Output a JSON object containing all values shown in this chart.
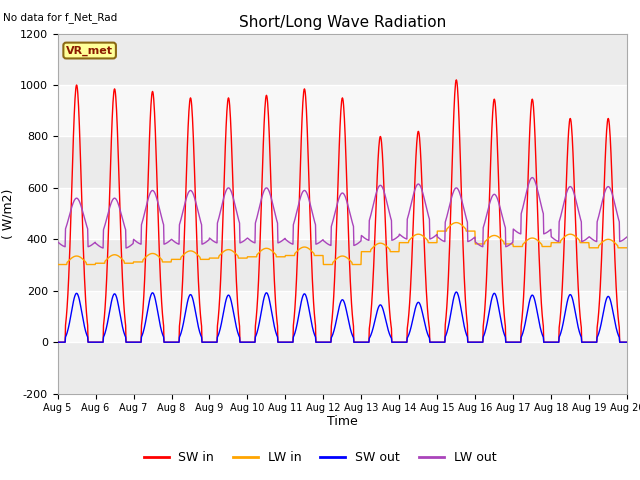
{
  "title": "Short/Long Wave Radiation",
  "ylabel": "( W/m2)",
  "xlabel": "Time",
  "ylim": [
    -200,
    1200
  ],
  "yticks": [
    -200,
    0,
    200,
    400,
    600,
    800,
    1000,
    1200
  ],
  "note": "No data for f_Net_Rad",
  "legend_label": "VR_met",
  "colors": {
    "SW_in": "#ff0000",
    "LW_in": "#ffa500",
    "SW_out": "#0000ff",
    "LW_out": "#aa44bb"
  },
  "line_labels": [
    "SW in",
    "LW in",
    "SW out",
    "LW out"
  ],
  "n_days": 15,
  "start_day": 5,
  "dt_hours": 0.25,
  "sw_in_peaks": [
    1000,
    985,
    975,
    950,
    950,
    960,
    985,
    950,
    800,
    820,
    1020,
    945,
    945,
    870,
    870
  ],
  "lw_in_base": [
    310,
    315,
    320,
    330,
    335,
    340,
    345,
    310,
    360,
    395,
    440,
    390,
    380,
    395,
    375
  ],
  "sw_out_peaks": [
    190,
    188,
    192,
    185,
    183,
    192,
    188,
    165,
    145,
    155,
    195,
    190,
    183,
    185,
    178
  ],
  "lw_out_peaks": [
    560,
    560,
    590,
    590,
    600,
    600,
    590,
    580,
    610,
    615,
    600,
    575,
    640,
    605,
    605
  ],
  "lw_out_night": [
    390,
    385,
    400,
    400,
    405,
    405,
    400,
    395,
    415,
    420,
    410,
    390,
    440,
    410,
    410
  ]
}
